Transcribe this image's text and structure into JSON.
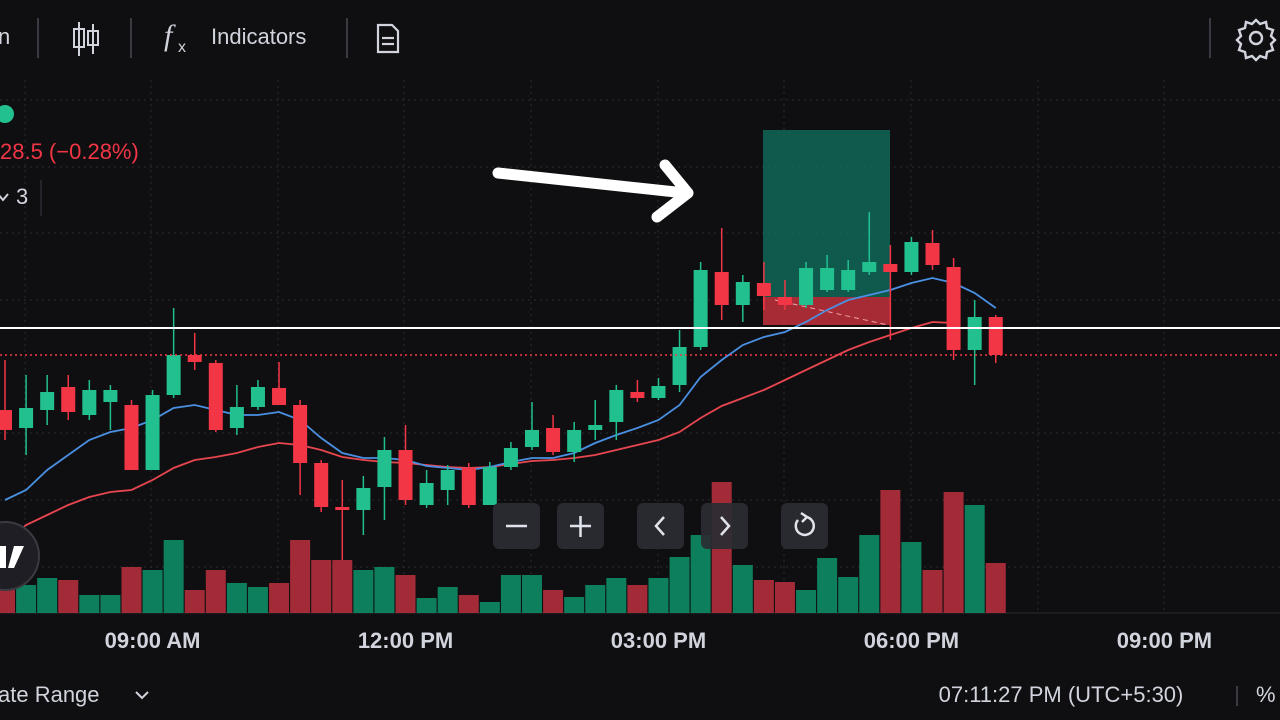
{
  "toolbar": {
    "cut_label": "n",
    "indicators": "Indicators"
  },
  "legend": {
    "change": "28.5 (−0.28%)",
    "count": "3"
  },
  "chart": {
    "type": "candlestick",
    "x_labels": [
      "09:00 AM",
      "12:00 PM",
      "03:00 PM",
      "06:00 PM",
      "09:00 PM"
    ],
    "ylim": [
      0,
      720
    ],
    "volume_lim": [
      0,
      613
    ],
    "up_color": "#22c08f",
    "down_color": "#f23645",
    "up_volume_color": "#0e7f5c",
    "down_volume_color": "#a32a37",
    "ema_fast_color": "#4a90e2",
    "ema_slow_color": "#e8464f",
    "open": [
      310,
      292,
      310,
      333,
      305,
      318,
      315,
      250,
      325,
      365,
      357,
      292,
      313,
      332,
      315,
      257,
      213,
      210,
      233,
      270,
      215,
      230,
      252,
      215,
      253,
      273,
      292,
      268,
      290,
      298,
      328,
      322,
      335,
      373,
      448,
      415,
      437,
      423,
      415,
      430,
      430,
      448,
      456,
      448,
      477,
      453,
      370,
      403
    ],
    "high": [
      360,
      345,
      345,
      345,
      340,
      335,
      320,
      330,
      412,
      387,
      360,
      335,
      340,
      358,
      320,
      260,
      240,
      244,
      283,
      295,
      250,
      255,
      257,
      258,
      278,
      318,
      305,
      298,
      320,
      335,
      340,
      342,
      390,
      458,
      492,
      445,
      458,
      440,
      458,
      465,
      460,
      508,
      475,
      483,
      490,
      462,
      420,
      405
    ],
    "low": [
      280,
      265,
      295,
      300,
      300,
      290,
      250,
      250,
      322,
      350,
      288,
      285,
      310,
      315,
      225,
      208,
      160,
      185,
      200,
      215,
      212,
      215,
      212,
      215,
      250,
      270,
      265,
      258,
      280,
      280,
      318,
      320,
      328,
      370,
      400,
      398,
      410,
      410,
      412,
      428,
      428,
      445,
      380,
      445,
      450,
      360,
      335,
      357
    ],
    "close": [
      290,
      312,
      328,
      308,
      330,
      330,
      250,
      325,
      365,
      358,
      290,
      313,
      333,
      315,
      257,
      213,
      210,
      232,
      270,
      220,
      237,
      250,
      215,
      253,
      272,
      290,
      268,
      290,
      295,
      330,
      322,
      334,
      373,
      450,
      415,
      438,
      424,
      415,
      452,
      452,
      450,
      458,
      448,
      478,
      455,
      370,
      403,
      365
    ],
    "volume": [
      23,
      28,
      35,
      33,
      18,
      18,
      46,
      43,
      73,
      23,
      43,
      30,
      26,
      30,
      73,
      53,
      53,
      43,
      46,
      38,
      15,
      26,
      18,
      11,
      38,
      38,
      23,
      16,
      28,
      35,
      28,
      35,
      56,
      78,
      131,
      48,
      33,
      31,
      23,
      55,
      36,
      78,
      123,
      71,
      43,
      121,
      108,
      50
    ],
    "ema_fast": [
      220,
      230,
      250,
      265,
      280,
      288,
      292,
      300,
      312,
      315,
      310,
      305,
      305,
      308,
      300,
      282,
      267,
      262,
      262,
      260,
      254,
      252,
      250,
      253,
      258,
      262,
      262,
      267,
      277,
      285,
      292,
      300,
      315,
      343,
      360,
      375,
      383,
      388,
      398,
      410,
      420,
      425,
      430,
      437,
      442,
      437,
      427,
      412
    ],
    "ema_slow": [
      175,
      195,
      205,
      215,
      223,
      228,
      230,
      240,
      252,
      260,
      263,
      267,
      273,
      277,
      275,
      270,
      263,
      260,
      258,
      257,
      255,
      253,
      252,
      253,
      256,
      259,
      260,
      262,
      265,
      270,
      275,
      280,
      288,
      302,
      314,
      322,
      330,
      340,
      350,
      360,
      370,
      378,
      385,
      392,
      398,
      397,
      null,
      null
    ]
  },
  "footer": {
    "range": "ate Range",
    "clock": "07:11:27 PM (UTC+5:30)",
    "percent": "%"
  }
}
